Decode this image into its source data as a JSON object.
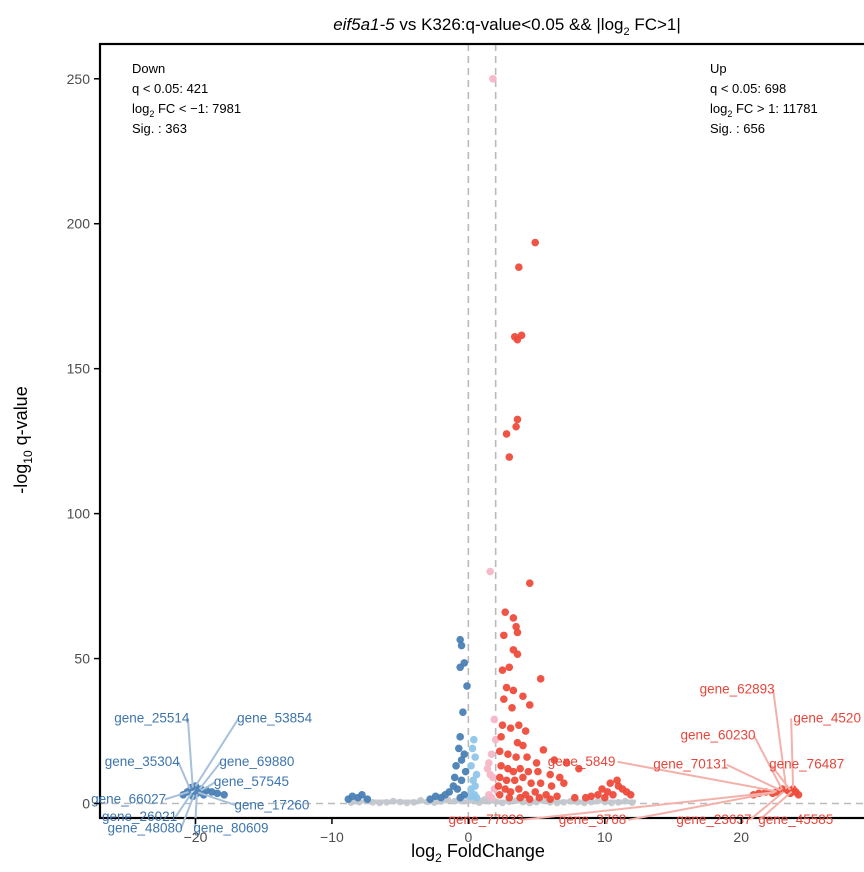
{
  "chart_data": {
    "type": "scatter",
    "title": {
      "italic": "eif5a1-5",
      "rest": " vs K326:q-value<0.05 && |log",
      "sub": "2",
      "tail": " FC>1|"
    },
    "xlabel": {
      "pre": "log",
      "sub": "2",
      "post": " FoldChange"
    },
    "ylabel": {
      "pre": "-log",
      "sub": "10",
      "post": " q-value"
    },
    "xlim": [
      -27,
      29
    ],
    "ylim": [
      -5,
      262
    ],
    "xticks": [
      -20,
      -10,
      0,
      10,
      20
    ],
    "xtick_labels": [
      "-20",
      "-10",
      "0",
      "10",
      "20"
    ],
    "yticks": [
      0,
      50,
      100,
      150,
      200,
      250
    ],
    "ytick_labels": [
      "0",
      "50",
      "100",
      "150",
      "200",
      "250"
    ],
    "vlines": [
      0,
      2
    ],
    "hline": 0,
    "grid": false,
    "colors": {
      "down": "#4a7fb5",
      "down_light": "#8ec6ea",
      "up": "#ee4b3b",
      "up_light": "#f7b6c8",
      "ns": "#c2c7cd",
      "down_label": "#3d75ad",
      "up_label": "#e8453a",
      "down_line": "#a8c1da",
      "up_line": "#f4b1aa",
      "ref_line": "#bbbbbb"
    },
    "annotations": {
      "down": {
        "title": "Down",
        "q": "q < 0.05: 421",
        "fc_pre": "log",
        "fc_sub": "2",
        "fc_post": " FC < −1: 7981",
        "sig": "Sig. : 363"
      },
      "up": {
        "title": "Up",
        "q": "q < 0.05: 698",
        "fc_pre": "log",
        "fc_sub": "2",
        "fc_post": " FC > 1: 11781",
        "sig": "Sig. : 656"
      }
    },
    "series": [
      {
        "group": "up",
        "points": [
          [
            4.9,
            193.5
          ],
          [
            3.7,
            185
          ],
          [
            3.4,
            161
          ],
          [
            3.9,
            161.5
          ],
          [
            3.6,
            160
          ],
          [
            3.6,
            132.5
          ],
          [
            3.5,
            130
          ],
          [
            2.8,
            127.5
          ],
          [
            3.0,
            119.5
          ],
          [
            4.5,
            76
          ],
          [
            2.7,
            66
          ],
          [
            3.3,
            64
          ],
          [
            3.5,
            61
          ],
          [
            3.6,
            59
          ],
          [
            2.6,
            58
          ],
          [
            3.3,
            53
          ],
          [
            3.6,
            51.5
          ],
          [
            2.5,
            46
          ],
          [
            3.0,
            47
          ],
          [
            2.8,
            40
          ],
          [
            3.3,
            39
          ],
          [
            4.0,
            37
          ],
          [
            4.5,
            34
          ],
          [
            5.3,
            43
          ],
          [
            2.6,
            36
          ],
          [
            3.2,
            33
          ],
          [
            2.5,
            27
          ],
          [
            3.1,
            26
          ],
          [
            3.7,
            27
          ],
          [
            4.2,
            25
          ],
          [
            2.4,
            23
          ],
          [
            3.6,
            21
          ],
          [
            4.0,
            20
          ],
          [
            5.5,
            18.5
          ],
          [
            2.3,
            18
          ],
          [
            2.9,
            17
          ],
          [
            3.5,
            16
          ],
          [
            4.3,
            16
          ],
          [
            5.0,
            14
          ],
          [
            6.3,
            15
          ],
          [
            7.2,
            14
          ],
          [
            2.4,
            13
          ],
          [
            2.9,
            12
          ],
          [
            3.3,
            11
          ],
          [
            3.8,
            12
          ],
          [
            4.4,
            11
          ],
          [
            5.1,
            11
          ],
          [
            6.0,
            10
          ],
          [
            6.7,
            9
          ],
          [
            8.1,
            12
          ],
          [
            2.3,
            9
          ],
          [
            2.8,
            8
          ],
          [
            3.4,
            8
          ],
          [
            4.0,
            9
          ],
          [
            4.6,
            7
          ],
          [
            5.3,
            7
          ],
          [
            6.1,
            6
          ],
          [
            7.0,
            7
          ],
          [
            2.2,
            6
          ],
          [
            2.7,
            5
          ],
          [
            3.1,
            4
          ],
          [
            3.7,
            5
          ],
          [
            4.2,
            3
          ],
          [
            4.9,
            4
          ],
          [
            5.7,
            3
          ],
          [
            6.5,
            2.5
          ],
          [
            7.8,
            2
          ],
          [
            2.3,
            3
          ],
          [
            3.0,
            2
          ],
          [
            3.8,
            2
          ],
          [
            4.5,
            1.5
          ],
          [
            5.2,
            2
          ],
          [
            6.0,
            1.5
          ],
          [
            9.8,
            5
          ],
          [
            10.2,
            4
          ],
          [
            10.6,
            3
          ],
          [
            11.0,
            6
          ],
          [
            11.3,
            5
          ],
          [
            10.4,
            7
          ],
          [
            10.9,
            8
          ],
          [
            9.5,
            3
          ],
          [
            9.0,
            2.5
          ],
          [
            8.6,
            2
          ],
          [
            11.6,
            4
          ],
          [
            11.9,
            3
          ],
          [
            10.0,
            2
          ],
          [
            22.6,
            4
          ],
          [
            23.0,
            5
          ],
          [
            23.4,
            4.5
          ],
          [
            23.8,
            5
          ],
          [
            24.0,
            4
          ],
          [
            22.3,
            3.5
          ],
          [
            21.8,
            4
          ],
          [
            21.3,
            3.5
          ],
          [
            20.9,
            3
          ],
          [
            23.6,
            3.5
          ],
          [
            24.2,
            3
          ]
        ]
      },
      {
        "group": "up_light",
        "points": [
          [
            1.8,
            250
          ],
          [
            1.6,
            80
          ],
          [
            1.9,
            29
          ],
          [
            1.7,
            17
          ],
          [
            1.5,
            14
          ],
          [
            2.0,
            22
          ],
          [
            1.6,
            10
          ],
          [
            1.8,
            9
          ],
          [
            1.4,
            12
          ],
          [
            1.9,
            5
          ],
          [
            1.5,
            3
          ],
          [
            1.7,
            2
          ]
        ]
      },
      {
        "group": "down",
        "points": [
          [
            -0.6,
            56.5
          ],
          [
            -0.5,
            54.5
          ],
          [
            -0.3,
            48.5
          ],
          [
            -0.6,
            47
          ],
          [
            -0.1,
            40.5
          ],
          [
            -0.4,
            31.5
          ],
          [
            -0.6,
            23
          ],
          [
            -0.7,
            19
          ],
          [
            -0.3,
            17
          ],
          [
            -0.5,
            15
          ],
          [
            -0.9,
            13
          ],
          [
            -0.2,
            11
          ],
          [
            -1.0,
            9
          ],
          [
            -0.5,
            8
          ],
          [
            -1.1,
            6
          ],
          [
            -1.4,
            4
          ],
          [
            -0.8,
            5
          ],
          [
            -0.3,
            3
          ],
          [
            -1.7,
            3
          ],
          [
            -2.0,
            2
          ],
          [
            -2.4,
            2.5
          ],
          [
            -2.8,
            1.5
          ],
          [
            -0.6,
            2
          ],
          [
            -8.5,
            2.5
          ],
          [
            -8.1,
            2
          ],
          [
            -7.8,
            3
          ],
          [
            -7.4,
            1.5
          ],
          [
            -8.8,
            1.5
          ],
          [
            -20.3,
            5.5
          ],
          [
            -20.0,
            6
          ],
          [
            -19.6,
            5
          ],
          [
            -19.2,
            4.5
          ],
          [
            -18.8,
            4
          ],
          [
            -18.4,
            3.5
          ],
          [
            -17.9,
            3
          ],
          [
            -20.6,
            4
          ],
          [
            -19.9,
            3.5
          ],
          [
            -19.4,
            3
          ],
          [
            -20.9,
            3
          ],
          [
            -20.2,
            2.5
          ]
        ]
      },
      {
        "group": "down_light",
        "points": [
          [
            0.4,
            22
          ],
          [
            0.3,
            19
          ],
          [
            0.5,
            16
          ],
          [
            0.2,
            13
          ],
          [
            0.6,
            10
          ],
          [
            0.35,
            8
          ],
          [
            0.5,
            6
          ],
          [
            0.2,
            5
          ],
          [
            0.45,
            3
          ],
          [
            0.15,
            2.5
          ],
          [
            0.6,
            2
          ]
        ]
      },
      {
        "group": "ns",
        "points": [
          [
            -8.0,
            0.5
          ],
          [
            -7.0,
            0.4
          ],
          [
            -6.0,
            0.4
          ],
          [
            -5.0,
            0.5
          ],
          [
            -4.0,
            0.4
          ],
          [
            -3.0,
            0.6
          ],
          [
            -2.0,
            0.7
          ],
          [
            -1.0,
            0.8
          ],
          [
            -0.5,
            1.0
          ],
          [
            0.0,
            0.9
          ],
          [
            0.5,
            0.9
          ],
          [
            1.0,
            0.9
          ],
          [
            1.5,
            0.8
          ],
          [
            2.0,
            0.7
          ],
          [
            3.0,
            0.6
          ],
          [
            4.0,
            0.5
          ],
          [
            5.0,
            0.5
          ],
          [
            6.0,
            0.4
          ],
          [
            7.0,
            0.4
          ],
          [
            8.0,
            0.5
          ],
          [
            9.0,
            0.5
          ],
          [
            10.0,
            0.5
          ],
          [
            11.0,
            0.4
          ],
          [
            -8.6,
            0.3
          ],
          [
            -7.5,
            0.9
          ],
          [
            -6.5,
            0.2
          ],
          [
            -5.5,
            0.8
          ],
          [
            -4.5,
            0.2
          ],
          [
            -3.5,
            1.1
          ],
          [
            -2.5,
            0.3
          ],
          [
            -1.5,
            1.3
          ],
          [
            0.3,
            1.6
          ],
          [
            0.8,
            0.3
          ],
          [
            1.2,
            1.4
          ],
          [
            2.5,
            0.2
          ],
          [
            3.5,
            1.0
          ],
          [
            4.5,
            0.2
          ],
          [
            5.5,
            0.9
          ],
          [
            6.5,
            0.2
          ],
          [
            7.5,
            0.8
          ],
          [
            8.5,
            0.2
          ],
          [
            9.5,
            0.9
          ],
          [
            10.5,
            0.2
          ],
          [
            11.5,
            0.8
          ],
          [
            12.0,
            0.3
          ]
        ]
      }
    ],
    "labels": [
      {
        "text": "gene_25514",
        "group": "down",
        "x": -20.2,
        "y": 5.5,
        "lx": -23.2,
        "ly": 28
      },
      {
        "text": "gene_53854",
        "group": "down",
        "x": -20.0,
        "y": 6.0,
        "lx": -14.2,
        "ly": 28
      },
      {
        "text": "gene_35304",
        "group": "down",
        "x": -20.4,
        "y": 5.0,
        "lx": -23.9,
        "ly": 13
      },
      {
        "text": "gene_69880",
        "group": "down",
        "x": -19.7,
        "y": 5.0,
        "lx": -15.5,
        "ly": 13
      },
      {
        "text": "gene_57545",
        "group": "down",
        "x": -19.6,
        "y": 4.5,
        "lx": -15.9,
        "ly": 6
      },
      {
        "text": "gene_66027",
        "group": "down",
        "x": -20.5,
        "y": 4.0,
        "lx": -24.9,
        "ly": 0
      },
      {
        "text": "gene_17260",
        "group": "down",
        "x": -19.8,
        "y": 3.8,
        "lx": -14.4,
        "ly": -2
      },
      {
        "text": "gene_26021",
        "group": "down",
        "x": -20.3,
        "y": 3.5,
        "lx": -24.1,
        "ly": -6
      },
      {
        "text": "gene_48080",
        "group": "down",
        "x": -20.1,
        "y": 3.0,
        "lx": -23.7,
        "ly": -10
      },
      {
        "text": "gene_80609",
        "group": "down",
        "x": -19.9,
        "y": 3.2,
        "lx": -17.4,
        "ly": -10
      },
      {
        "text": "gene_62893",
        "group": "up",
        "x": 23.3,
        "y": 5.0,
        "lx": 19.7,
        "ly": 38
      },
      {
        "text": "gene_4520",
        "group": "up",
        "x": 23.8,
        "y": 5.5,
        "lx": 26.3,
        "ly": 28
      },
      {
        "text": "gene_60230",
        "group": "up",
        "x": 23.0,
        "y": 4.8,
        "lx": 18.3,
        "ly": 22
      },
      {
        "text": "gene_5849",
        "group": "up",
        "x": 22.6,
        "y": 4.2,
        "lx": 8.3,
        "ly": 13
      },
      {
        "text": "gene_70131",
        "group": "up",
        "x": 22.9,
        "y": 4.5,
        "lx": 16.3,
        "ly": 12
      },
      {
        "text": "gene_76487",
        "group": "up",
        "x": 23.6,
        "y": 4.7,
        "lx": 24.8,
        "ly": 12
      },
      {
        "text": "gene_77833",
        "group": "up",
        "x": 22.3,
        "y": 3.8,
        "lx": 1.3,
        "ly": -7
      },
      {
        "text": "gene_3768",
        "group": "up",
        "x": 22.5,
        "y": 3.9,
        "lx": 9.1,
        "ly": -7
      },
      {
        "text": "gene_23637",
        "group": "up",
        "x": 23.1,
        "y": 4.0,
        "lx": 18.0,
        "ly": -7
      },
      {
        "text": "gene_45585",
        "group": "up",
        "x": 23.7,
        "y": 4.1,
        "lx": 24.0,
        "ly": -7
      }
    ]
  }
}
